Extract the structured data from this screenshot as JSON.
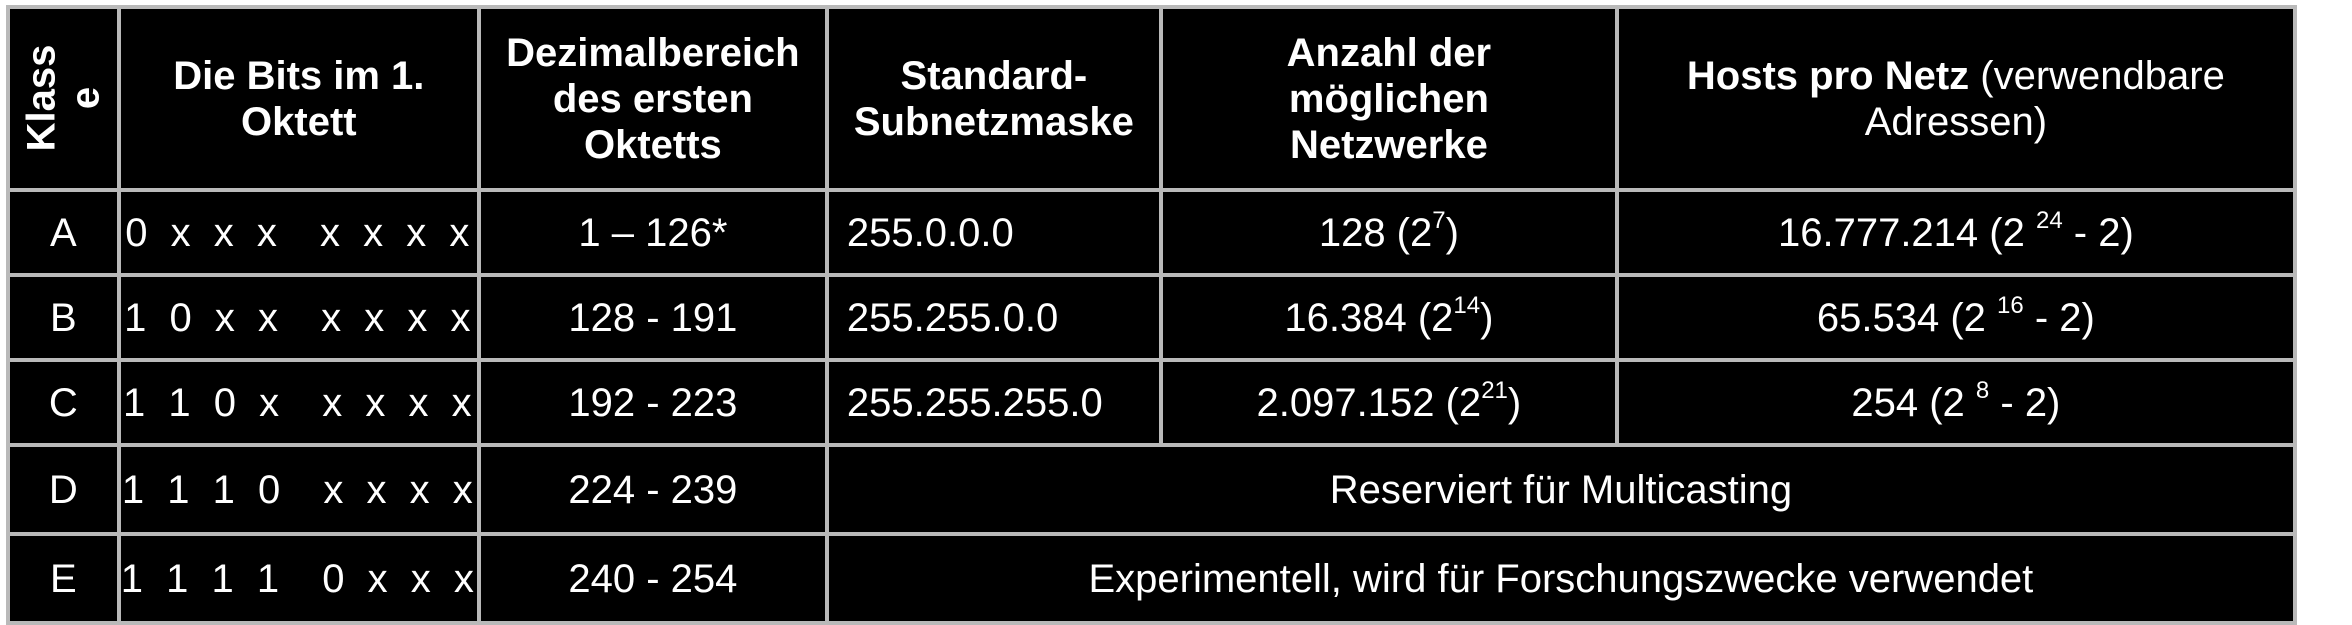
{
  "headers": {
    "klasse_line1": "Klass",
    "klasse_line2": "e",
    "bits_line1": "Die Bits im 1.",
    "bits_line2": "Oktett",
    "dez_line1": "Dezimalbereich",
    "dez_line2": "des ersten",
    "dez_line3": "Oktetts",
    "mask_line1": "Standard-",
    "mask_line2": "Subnetzmaske",
    "nets_line1": "Anzahl der",
    "nets_line2": "möglichen",
    "nets_line3": "Netzwerke",
    "hosts_bold": "Hosts pro Netz",
    "hosts_normal1": " (verwendbare",
    "hosts_normal2": "Adressen)"
  },
  "rows": [
    {
      "klasse": "A",
      "bits": "0 x x x  x x x x",
      "range": "1 – 126*",
      "mask": "255.0.0.0",
      "nets_base": "128 (2",
      "nets_exp": "7",
      "nets_tail": ")",
      "hosts_base": "16.777.214 (2 ",
      "hosts_exp": "24",
      "hosts_tail": " - 2)"
    },
    {
      "klasse": "B",
      "bits": "1 0 x x  x x x x",
      "range": "128 - 191",
      "mask": "255.255.0.0",
      "nets_base": "16.384 (2",
      "nets_exp": "14",
      "nets_tail": ")",
      "hosts_base": "65.534 (2 ",
      "hosts_exp": "16",
      "hosts_tail": " - 2)"
    },
    {
      "klasse": "C",
      "bits": "1 1 0 x  x x x x",
      "range": "192 - 223",
      "mask": "255.255.255.0",
      "nets_base": "2.097.152 (2",
      "nets_exp": "21",
      "nets_tail": ")",
      "hosts_base": "254 (2 ",
      "hosts_exp": "8",
      "hosts_tail": " - 2)"
    },
    {
      "klasse": "D",
      "bits": "1 1 1 0  x x x x",
      "range": "224 - 239",
      "note": "Reserviert für Multicasting"
    },
    {
      "klasse": "E",
      "bits": "1 1 1 1  0 x x x",
      "range": "240 - 254",
      "note": "Experimentell, wird für Forschungszwecke verwendet"
    }
  ]
}
